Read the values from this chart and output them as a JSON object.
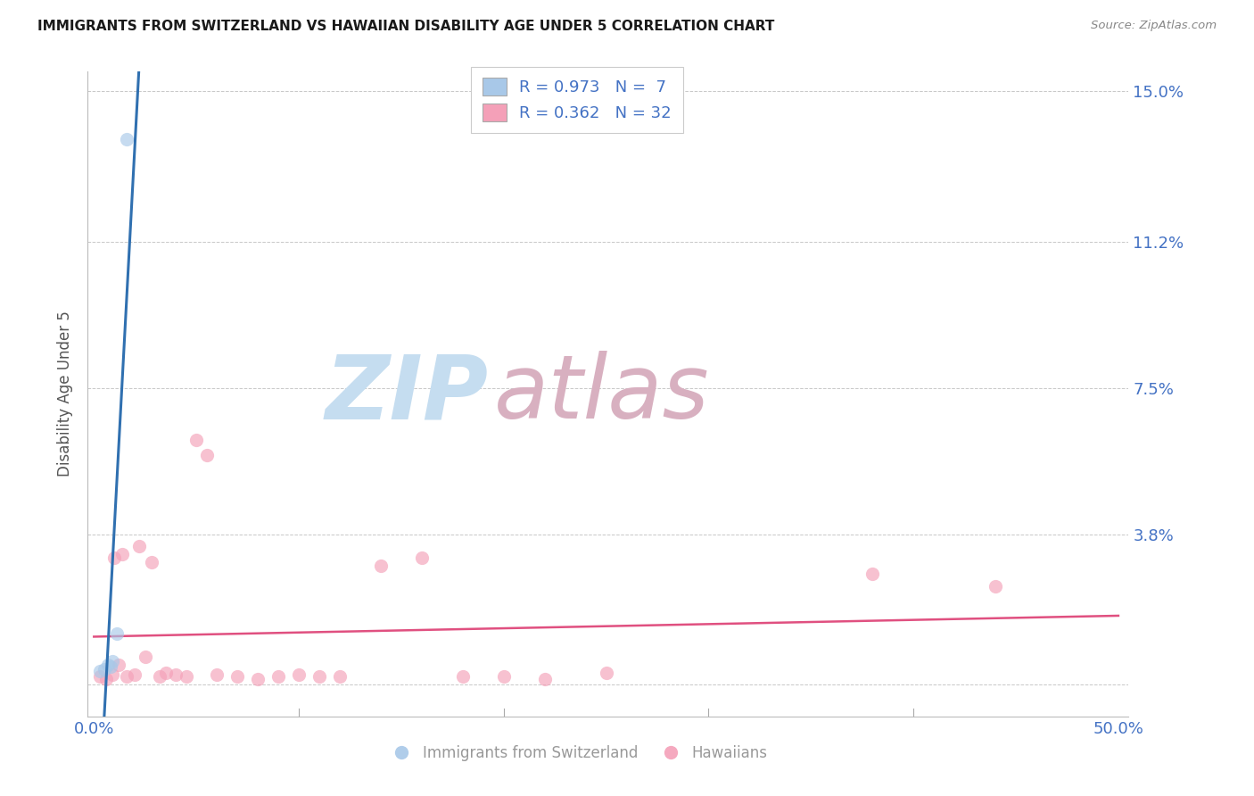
{
  "title": "IMMIGRANTS FROM SWITZERLAND VS HAWAIIAN DISABILITY AGE UNDER 5 CORRELATION CHART",
  "source": "Source: ZipAtlas.com",
  "ylabel": "Disability Age Under 5",
  "xlim": [
    0.0,
    50.0
  ],
  "ylim": [
    0.0,
    15.0
  ],
  "yticks": [
    0.0,
    3.8,
    7.5,
    11.2,
    15.0
  ],
  "ytick_labels": [
    "",
    "3.8%",
    "7.5%",
    "11.2%",
    "15.0%"
  ],
  "background_color": "#ffffff",
  "grid_color": "#c8c8c8",
  "swiss_R": 0.973,
  "swiss_N": 7,
  "hawaii_R": 0.362,
  "hawaii_N": 32,
  "swiss_color": "#a8c8e8",
  "hawaii_color": "#f4a0b8",
  "trendline_swiss_color": "#3070b0",
  "trendline_hawaii_color": "#e05080",
  "swiss_x": [
    0.3,
    0.5,
    0.7,
    0.8,
    0.9,
    1.1,
    1.6
  ],
  "swiss_y": [
    0.35,
    0.4,
    0.5,
    0.45,
    0.6,
    1.3,
    13.8
  ],
  "hawaii_x": [
    0.3,
    0.6,
    0.9,
    1.0,
    1.2,
    1.4,
    1.6,
    2.0,
    2.2,
    2.5,
    2.8,
    3.2,
    3.5,
    4.0,
    4.5,
    5.0,
    5.5,
    6.0,
    7.0,
    8.0,
    9.0,
    10.0,
    11.0,
    12.0,
    14.0,
    16.0,
    18.0,
    20.0,
    22.0,
    25.0,
    38.0,
    44.0
  ],
  "hawaii_y": [
    0.2,
    0.15,
    0.25,
    3.2,
    0.5,
    3.3,
    0.2,
    0.25,
    3.5,
    0.7,
    3.1,
    0.2,
    0.3,
    0.25,
    0.2,
    6.2,
    5.8,
    0.25,
    0.2,
    0.15,
    0.2,
    0.25,
    0.2,
    0.2,
    3.0,
    3.2,
    0.2,
    0.2,
    0.15,
    0.3,
    2.8,
    2.5
  ],
  "watermark_zip": "ZIP",
  "watermark_atlas": "atlas",
  "watermark_color_zip": "#c5ddf0",
  "watermark_color_atlas": "#d8b0c0",
  "title_color": "#1a1a1a",
  "source_color": "#888888",
  "label_color": "#4472c4",
  "axis_tick_color": "#888888",
  "ylabel_color": "#555555",
  "marker_size": 120,
  "marker_linewidth": 0,
  "marker_alpha": 0.65,
  "legend_label_color": "#4472c4",
  "bottom_legend_color": "#999999"
}
